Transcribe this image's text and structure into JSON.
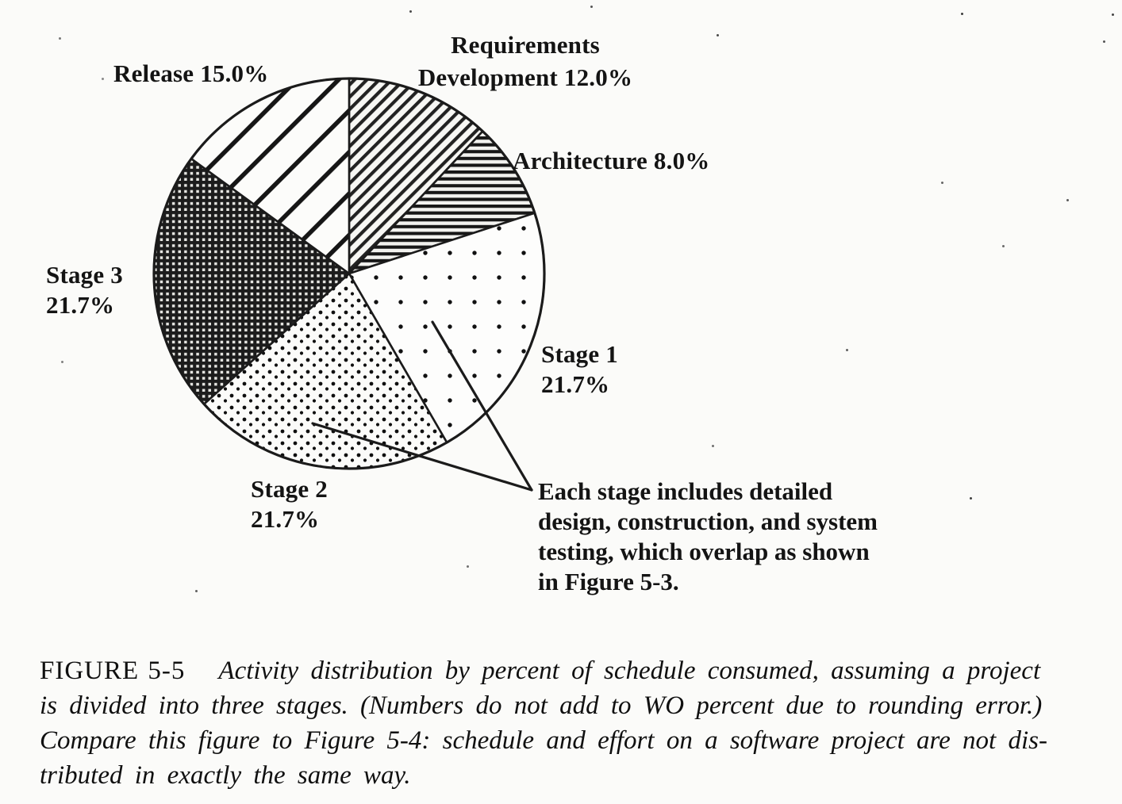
{
  "figure": {
    "caption": {
      "figure_label": "FIGURE 5-5",
      "line1": "Activity distribution by percent of schedule consumed, assuming a project",
      "line2": "is divided into three stages. (Numbers do not add to WO percent due to rounding error.)",
      "line3": "Compare this figure to Figure 5-4: schedule and effort on a software project are not dis-",
      "line4": "tributed in exactly the same way."
    },
    "annotation": {
      "line1": "Each stage includes detailed",
      "line2": "design, construction, and system",
      "line3": "testing, which overlap as shown",
      "line4": "in Figure 5-3."
    },
    "labels": {
      "requirements": {
        "line1": "Requirements",
        "line2": "Development 12.0%"
      },
      "architecture": {
        "line1": "Architecture 8.0%"
      },
      "stage1": {
        "line1": "Stage 1",
        "line2": "21.7%"
      },
      "stage2": {
        "line1": "Stage 2",
        "line2": "21.7%"
      },
      "stage3": {
        "line1": "Stage 3",
        "line2": "21.7%"
      },
      "release": {
        "line1": "Release 15.0%"
      }
    }
  },
  "chart_data": {
    "type": "pie",
    "title": "",
    "unit": "percent of schedule",
    "start_angle_deg": 0,
    "direction": "clockwise",
    "slices": [
      {
        "label": "Requirements Development",
        "value": 12.0,
        "pattern": "requirements"
      },
      {
        "label": "Architecture",
        "value": 8.0,
        "pattern": "architecture"
      },
      {
        "label": "Stage 1",
        "value": 21.7,
        "pattern": "stage1"
      },
      {
        "label": "Stage 2",
        "value": 21.7,
        "pattern": "stage2"
      },
      {
        "label": "Stage 3",
        "value": 21.7,
        "pattern": "stage3"
      },
      {
        "label": "Release",
        "value": 15.0,
        "pattern": "release"
      }
    ]
  },
  "colors": {
    "ink": "#1b1b1b",
    "paper": "#fbfbf9"
  }
}
